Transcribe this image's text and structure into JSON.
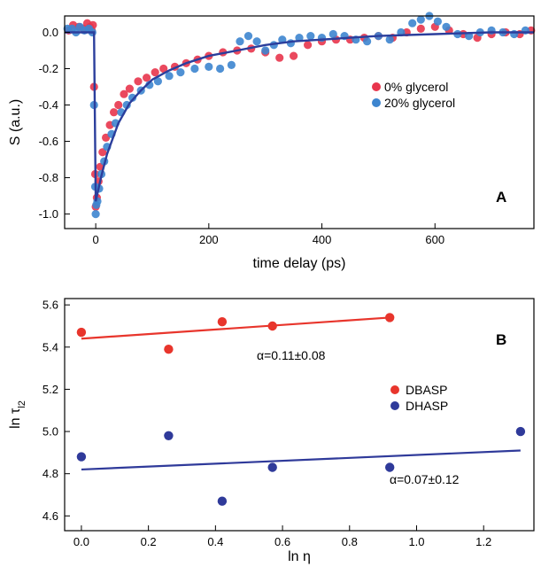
{
  "chart_data": [
    {
      "type": "scatter",
      "panel": "A",
      "xlabel": "time delay (ps)",
      "ylabel": "S (a.u.)",
      "xlim": [
        -55,
        775
      ],
      "ylim": [
        -1.08,
        0.09
      ],
      "xticks": [
        0,
        200,
        400,
        600
      ],
      "yticks": [
        0.0,
        -0.2,
        -0.4,
        -0.6,
        -0.8,
        -1.0
      ],
      "ytick_labels": [
        "0.0",
        "-0.2",
        "-0.4",
        "-0.6",
        "-0.8",
        "-1.0"
      ],
      "grid": false,
      "legend_position": "right-center",
      "series": [
        {
          "name": "0% glycerol",
          "color": "#e8354c",
          "points": [
            [
              -48,
              0.01
            ],
            [
              -40,
              0.04
            ],
            [
              -30,
              0.03
            ],
            [
              -22,
              0.02
            ],
            [
              -15,
              0.05
            ],
            [
              -10,
              0.03
            ],
            [
              -7,
              0.01
            ],
            [
              -5,
              0.04
            ],
            [
              -3,
              -0.3
            ],
            [
              -1,
              -0.78
            ],
            [
              0,
              -0.96
            ],
            [
              2,
              -0.91
            ],
            [
              5,
              -0.82
            ],
            [
              8,
              -0.74
            ],
            [
              12,
              -0.66
            ],
            [
              18,
              -0.58
            ],
            [
              25,
              -0.51
            ],
            [
              32,
              -0.44
            ],
            [
              40,
              -0.4
            ],
            [
              50,
              -0.34
            ],
            [
              60,
              -0.31
            ],
            [
              75,
              -0.27
            ],
            [
              90,
              -0.25
            ],
            [
              105,
              -0.22
            ],
            [
              120,
              -0.2
            ],
            [
              140,
              -0.19
            ],
            [
              160,
              -0.17
            ],
            [
              180,
              -0.15
            ],
            [
              200,
              -0.13
            ],
            [
              225,
              -0.11
            ],
            [
              250,
              -0.1
            ],
            [
              275,
              -0.09
            ],
            [
              300,
              -0.11
            ],
            [
              325,
              -0.14
            ],
            [
              350,
              -0.13
            ],
            [
              375,
              -0.07
            ],
            [
              400,
              -0.05
            ],
            [
              425,
              -0.04
            ],
            [
              450,
              -0.04
            ],
            [
              475,
              -0.03
            ],
            [
              500,
              -0.02
            ],
            [
              525,
              -0.03
            ],
            [
              550,
              0.0
            ],
            [
              575,
              0.02
            ],
            [
              600,
              0.03
            ],
            [
              625,
              0.01
            ],
            [
              650,
              -0.01
            ],
            [
              675,
              -0.03
            ],
            [
              700,
              -0.01
            ],
            [
              725,
              0.0
            ],
            [
              750,
              -0.01
            ],
            [
              770,
              0.01
            ]
          ]
        },
        {
          "name": "20% glycerol",
          "color": "#3d85cf",
          "points": [
            [
              -50,
              0.02
            ],
            [
              -42,
              0.02
            ],
            [
              -35,
              0.0
            ],
            [
              -28,
              0.03
            ],
            [
              -20,
              0.01
            ],
            [
              -12,
              0.02
            ],
            [
              -6,
              0.0
            ],
            [
              -3,
              -0.4
            ],
            [
              -1,
              -0.85
            ],
            [
              0,
              -1.0
            ],
            [
              1,
              -0.95
            ],
            [
              3,
              -0.93
            ],
            [
              6,
              -0.86
            ],
            [
              10,
              -0.78
            ],
            [
              15,
              -0.71
            ],
            [
              20,
              -0.63
            ],
            [
              28,
              -0.56
            ],
            [
              35,
              -0.5
            ],
            [
              45,
              -0.44
            ],
            [
              55,
              -0.4
            ],
            [
              65,
              -0.36
            ],
            [
              80,
              -0.32
            ],
            [
              95,
              -0.29
            ],
            [
              110,
              -0.27
            ],
            [
              130,
              -0.24
            ],
            [
              150,
              -0.22
            ],
            [
              175,
              -0.2
            ],
            [
              200,
              -0.19
            ],
            [
              220,
              -0.2
            ],
            [
              240,
              -0.18
            ],
            [
              255,
              -0.05
            ],
            [
              270,
              -0.02
            ],
            [
              285,
              -0.05
            ],
            [
              300,
              -0.1
            ],
            [
              315,
              -0.07
            ],
            [
              330,
              -0.04
            ],
            [
              345,
              -0.06
            ],
            [
              360,
              -0.03
            ],
            [
              380,
              -0.02
            ],
            [
              400,
              -0.03
            ],
            [
              420,
              -0.01
            ],
            [
              440,
              -0.02
            ],
            [
              460,
              -0.04
            ],
            [
              480,
              -0.05
            ],
            [
              500,
              -0.02
            ],
            [
              520,
              -0.04
            ],
            [
              540,
              0.0
            ],
            [
              560,
              0.05
            ],
            [
              575,
              0.07
            ],
            [
              590,
              0.09
            ],
            [
              605,
              0.06
            ],
            [
              620,
              0.03
            ],
            [
              640,
              -0.01
            ],
            [
              660,
              -0.02
            ],
            [
              680,
              0.0
            ],
            [
              700,
              0.01
            ],
            [
              720,
              0.0
            ],
            [
              740,
              -0.01
            ],
            [
              760,
              0.01
            ]
          ]
        }
      ],
      "fit": {
        "color": "#2b3e9c",
        "points": [
          [
            -55,
            0.0
          ],
          [
            -3,
            0.0
          ],
          [
            0,
            -0.93
          ],
          [
            10,
            -0.79
          ],
          [
            20,
            -0.67
          ],
          [
            40,
            -0.5
          ],
          [
            60,
            -0.39
          ],
          [
            80,
            -0.32
          ],
          [
            100,
            -0.26
          ],
          [
            130,
            -0.21
          ],
          [
            160,
            -0.17
          ],
          [
            200,
            -0.13
          ],
          [
            250,
            -0.1
          ],
          [
            300,
            -0.07
          ],
          [
            350,
            -0.05
          ],
          [
            400,
            -0.04
          ],
          [
            450,
            -0.03
          ],
          [
            500,
            -0.02
          ],
          [
            600,
            -0.01
          ],
          [
            700,
            0.0
          ],
          [
            775,
            0.0
          ]
        ]
      }
    },
    {
      "type": "scatter",
      "panel": "B",
      "xlabel": "ln η",
      "ylabel": "ln τ",
      "ylabel_subscript": "l2",
      "xlim": [
        -0.05,
        1.35
      ],
      "ylim": [
        4.53,
        5.63
      ],
      "xticks": [
        0.0,
        0.2,
        0.4,
        0.6,
        0.8,
        1.0,
        1.2
      ],
      "xtick_labels": [
        "0.0",
        "0.2",
        "0.4",
        "0.6",
        "0.8",
        "1.0",
        "1.2"
      ],
      "yticks": [
        4.6,
        4.8,
        5.0,
        5.2,
        5.4,
        5.6
      ],
      "ytick_labels": [
        "4.6",
        "4.8",
        "5.0",
        "5.2",
        "5.4",
        "5.6"
      ],
      "grid": false,
      "legend_position": "right-center",
      "series": [
        {
          "name": "DBASP",
          "color": "#e8352c",
          "points": [
            [
              0.0,
              5.47
            ],
            [
              0.26,
              5.39
            ],
            [
              0.42,
              5.52
            ],
            [
              0.57,
              5.5
            ],
            [
              0.92,
              5.54
            ]
          ],
          "fit": [
            [
              0.0,
              5.44
            ],
            [
              0.92,
              5.54
            ]
          ],
          "annotation": "α=0.11±0.08"
        },
        {
          "name": "DHASP",
          "color": "#2f3a9a",
          "points": [
            [
              0.0,
              4.88
            ],
            [
              0.26,
              4.98
            ],
            [
              0.42,
              4.67
            ],
            [
              0.57,
              4.83
            ],
            [
              0.92,
              4.83
            ],
            [
              1.31,
              5.0
            ]
          ],
          "fit": [
            [
              0.0,
              4.82
            ],
            [
              1.31,
              4.91
            ]
          ],
          "annotation": "α=0.07±0.12"
        }
      ]
    }
  ]
}
